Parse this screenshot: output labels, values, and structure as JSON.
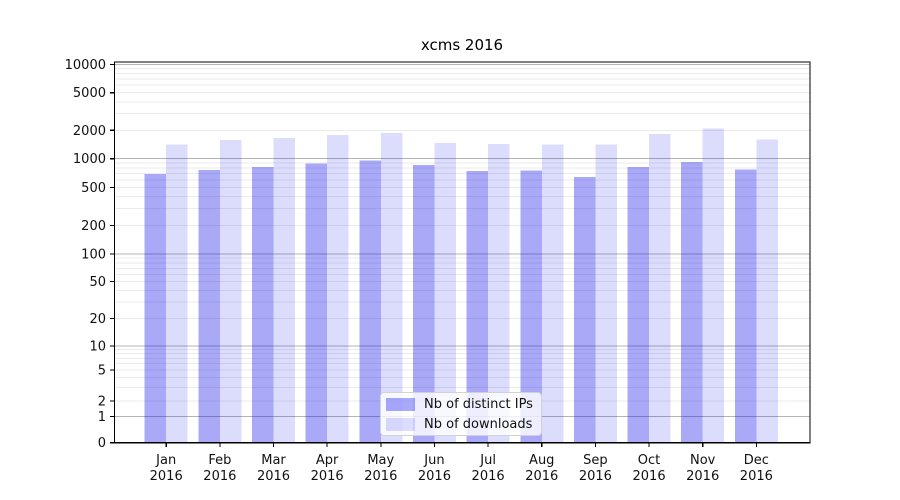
{
  "chart_data": {
    "type": "bar",
    "title": "xcms 2016",
    "categories": [
      "Jan",
      "Feb",
      "Mar",
      "Apr",
      "May",
      "Jun",
      "Jul",
      "Aug",
      "Sep",
      "Oct",
      "Nov",
      "Dec"
    ],
    "category_year": "2016",
    "series": [
      {
        "name": "Nb of distinct IPs",
        "color": "rgba(10,10,235,0.35)",
        "values": [
          690,
          765,
          820,
          890,
          960,
          860,
          740,
          750,
          645,
          820,
          920,
          770
        ]
      },
      {
        "name": "Nb of downloads",
        "color": "rgba(10,10,235,0.14)",
        "values": [
          1420,
          1580,
          1660,
          1780,
          1880,
          1470,
          1430,
          1410,
          1420,
          1830,
          2080,
          1600
        ]
      }
    ],
    "yscale": "symlog",
    "yticks": [
      0,
      1,
      2,
      5,
      10,
      20,
      50,
      100,
      200,
      500,
      1000,
      2000,
      5000,
      10000
    ],
    "ylim": [
      0,
      10000
    ],
    "grid": {
      "show": true,
      "major_color": "#b4b4b4",
      "minor_color": "#ebebeb"
    },
    "legend": {
      "location": "lower-center"
    }
  }
}
